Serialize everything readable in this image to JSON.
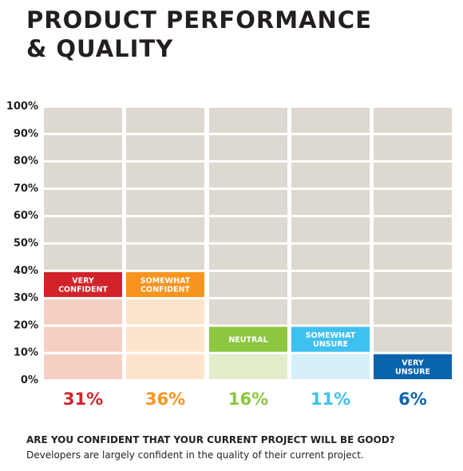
{
  "title_line1": "PRODUCT PERFORMANCE",
  "title_line2": "& QUALITY",
  "chart_data": {
    "type": "bar",
    "categories": [
      "VERY CONFIDENT",
      "SOMEWHAT CONFIDENT",
      "NEUTRAL",
      "SOMEWHAT UNSURE",
      "VERY UNSURE"
    ],
    "label_lines": [
      [
        "VERY",
        "CONFIDENT"
      ],
      [
        "SOMEWHAT",
        "CONFIDENT"
      ],
      [
        "NEUTRAL"
      ],
      [
        "SOMEWHAT",
        "UNSURE"
      ],
      [
        "VERY",
        "UNSURE"
      ]
    ],
    "values": [
      31,
      36,
      16,
      11,
      6
    ],
    "value_labels": [
      "31%",
      "36%",
      "16%",
      "11%",
      "6%"
    ],
    "label_row_level": [
      40,
      40,
      20,
      20,
      10
    ],
    "colors": [
      "#d2232a",
      "#f7941d",
      "#8dc63f",
      "#3fc1f0",
      "#0a63ad"
    ],
    "fill_colors": [
      "#f6cfc3",
      "#fde5cd",
      "#e3edcc",
      "#d5f0fb",
      "#d2dfef"
    ],
    "grid_color": "#ddd8d0",
    "yticks": [
      "0%",
      "10%",
      "20%",
      "30%",
      "40%",
      "50%",
      "60%",
      "70%",
      "80%",
      "90%",
      "100%"
    ],
    "ylim": [
      0,
      100
    ]
  },
  "question": "ARE YOU CONFIDENT THAT YOUR CURRENT PROJECT WILL BE GOOD?",
  "note": "Developers are largely confident in the quality of their current project."
}
